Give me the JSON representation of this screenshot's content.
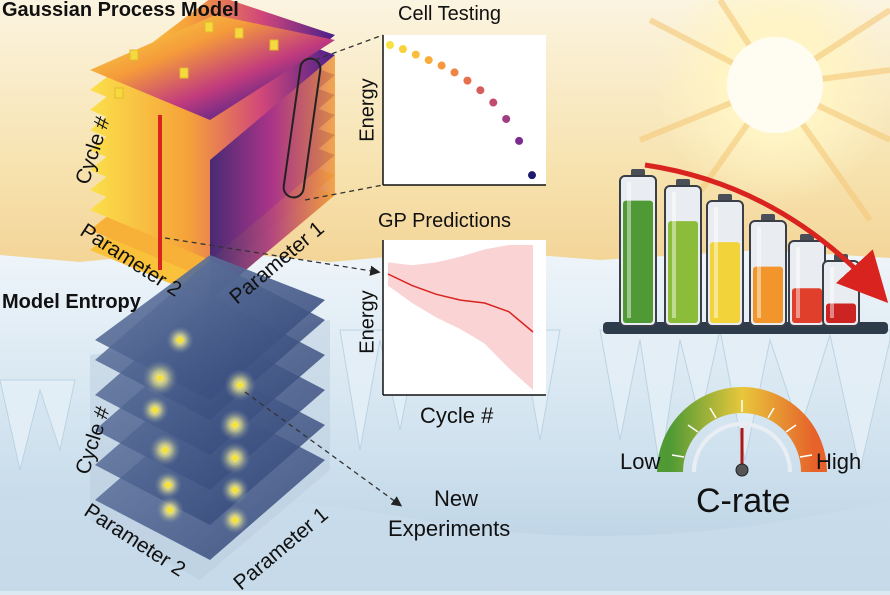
{
  "titles": {
    "gp_model": "Gaussian Process Model",
    "model_entropy": "Model Entropy",
    "cell_testing": "Cell Testing",
    "gp_predictions": "GP Predictions",
    "new_experiments_1": "New",
    "new_experiments_2": "Experiments",
    "c_rate": "C-rate"
  },
  "cube_axes": {
    "cycle": "Cycle #",
    "param1": "Parameter 1",
    "param2": "Parameter 2"
  },
  "cell_testing_plot": {
    "ylabel": "Energy",
    "points": [
      1.0,
      0.97,
      0.93,
      0.89,
      0.85,
      0.8,
      0.74,
      0.67,
      0.58,
      0.46,
      0.3,
      0.05
    ],
    "colors": [
      "#f6e342",
      "#f8d13c",
      "#f9bf3a",
      "#f8ad3a",
      "#f6993d",
      "#f08444",
      "#e6704e",
      "#d55d5d",
      "#c04c6e",
      "#a23c80",
      "#7a2d8e",
      "#1f1a6e"
    ]
  },
  "gp_predictions_plot": {
    "ylabel": "Energy",
    "xlabel": "Cycle #",
    "mean": [
      0.8,
      0.72,
      0.66,
      0.62,
      0.6,
      0.54,
      0.4
    ],
    "upper": [
      0.88,
      0.86,
      0.88,
      0.92,
      0.97,
      1.0,
      1.0
    ],
    "lower": [
      0.72,
      0.6,
      0.5,
      0.42,
      0.32,
      0.15,
      0.0
    ]
  },
  "batteries": {
    "fills": [
      0.85,
      0.76,
      0.68,
      0.57,
      0.44,
      0.33
    ],
    "colors": [
      "#4f9a35",
      "#8bbd3a",
      "#f2d33a",
      "#f2962c",
      "#e0402b",
      "#cc2323"
    ]
  },
  "gauge": {
    "low_label": "Low",
    "high_label": "High"
  }
}
